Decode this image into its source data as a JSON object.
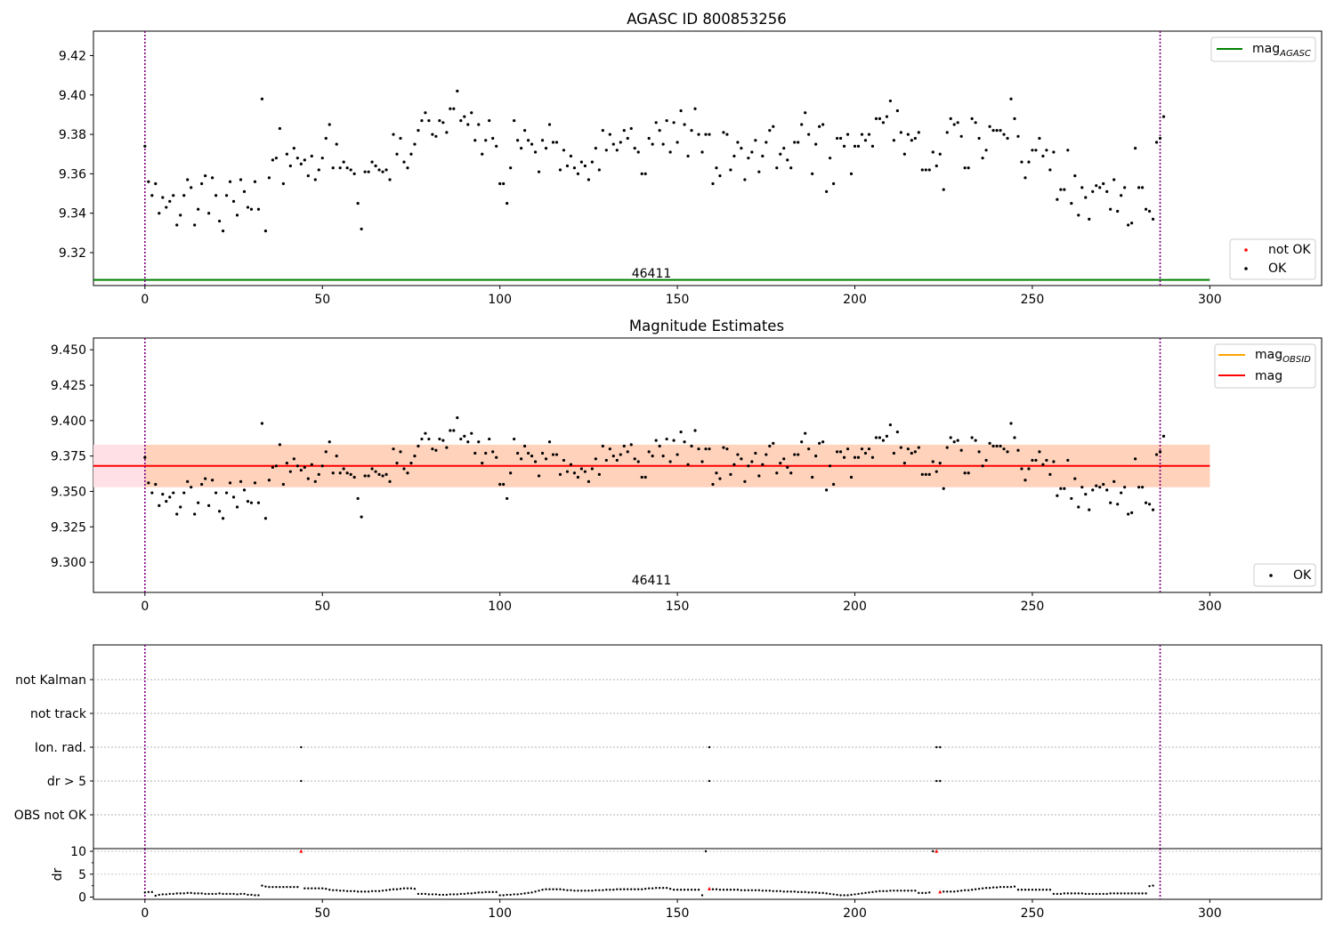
{
  "chart_data": [
    {
      "type": "scatter",
      "title": "AGASC ID 800853256",
      "x_ticks": [
        0,
        50,
        100,
        150,
        200,
        250,
        300
      ],
      "y_ticks": [
        9.32,
        9.34,
        9.36,
        9.38,
        9.4,
        9.42
      ],
      "xlim": [
        -14.5,
        331.5
      ],
      "ylim": [
        9.3033,
        9.4324
      ],
      "obsid_label": "46411",
      "obsid_boundaries": [
        0,
        286
      ],
      "legend_top": [
        {
          "label": "mag",
          "sub": "AGASC",
          "color": "#008000"
        }
      ],
      "legend_bottom": [
        {
          "label": "not OK",
          "color": "#ff0000"
        },
        {
          "label": "OK",
          "color": "#000000"
        }
      ],
      "hlines": [
        {
          "name": "mag_AGASC",
          "y": 9.3062,
          "xmin": -14.5,
          "xmax": 300,
          "color": "#008000"
        }
      ]
    },
    {
      "type": "scatter",
      "title": "Magnitude Estimates",
      "x_ticks": [
        0,
        50,
        100,
        150,
        200,
        250,
        300
      ],
      "y_ticks": [
        9.3,
        9.325,
        9.35,
        9.375,
        9.4,
        9.425,
        9.45
      ],
      "xlim": [
        -14.5,
        331.5
      ],
      "ylim": [
        9.2787,
        9.4583
      ],
      "obsid_label": "46411",
      "obsid_boundaries": [
        0,
        286
      ],
      "legend_top": [
        {
          "label": "mag",
          "sub": "OBSID",
          "color": "#ffa500"
        },
        {
          "label": "mag",
          "sub": "",
          "color": "#ff0000"
        }
      ],
      "legend_bottom": [
        {
          "label": "OK",
          "color": "#000000"
        }
      ],
      "mean_mag": 9.368,
      "band_pink": [
        9.353,
        9.383
      ],
      "band_orange": [
        9.353,
        9.383
      ],
      "band_xrange": [
        -14.5,
        300
      ],
      "band_orange_xrange": [
        0,
        300
      ]
    },
    {
      "type": "scatter",
      "title": "",
      "flag_labels": [
        "not Kalman",
        "not track",
        "Ion. rad.",
        "dr > 5",
        "OBS not OK"
      ],
      "flags": {
        "Ion. rad.": [
          44,
          159,
          223,
          224
        ],
        "dr > 5": [
          44,
          159,
          223,
          224
        ]
      },
      "x_ticks": [
        0,
        50,
        100,
        150,
        200,
        250,
        300
      ],
      "xlim": [
        -14.5,
        331.5
      ],
      "obsid_boundaries": [
        0,
        286
      ]
    },
    {
      "type": "scatter",
      "title": "",
      "ylabel": "dr",
      "y_ticks": [
        0,
        5,
        10
      ],
      "ylim": [
        -0.5,
        10.5
      ],
      "x_ticks": [
        0,
        50,
        100,
        150,
        200,
        250,
        300
      ],
      "xlim": [
        -14.5,
        331.5
      ],
      "dr_outliers": [
        44,
        159,
        223,
        224
      ],
      "obsid_boundaries": [
        0,
        286
      ]
    }
  ],
  "series_mag": [
    9.374,
    9.356,
    9.349,
    9.355,
    9.34,
    9.348,
    9.343,
    9.346,
    9.349,
    9.334,
    9.339,
    9.349,
    9.357,
    9.353,
    9.334,
    9.342,
    9.355,
    9.359,
    9.34,
    9.358,
    9.349,
    9.336,
    9.331,
    9.349,
    9.356,
    9.346,
    9.339,
    9.357,
    9.351,
    9.343,
    9.342,
    9.356,
    9.342,
    9.398,
    9.331,
    9.358,
    9.367,
    9.368,
    9.383,
    9.355,
    9.37,
    9.364,
    9.373,
    9.368,
    9.365,
    9.367,
    9.359,
    9.369,
    9.357,
    9.362,
    9.368,
    9.378,
    9.385,
    9.363,
    9.375,
    9.363,
    9.366,
    9.363,
    9.362,
    9.36,
    9.345,
    9.332,
    9.361,
    9.361,
    9.366,
    9.364,
    9.362,
    9.361,
    9.362,
    9.357,
    9.38,
    9.37,
    9.378,
    9.366,
    9.363,
    9.37,
    9.375,
    9.382,
    9.387,
    9.391,
    9.387,
    9.38,
    9.379,
    9.387,
    9.386,
    9.381,
    9.393,
    9.393,
    9.402,
    9.387,
    9.389,
    9.385,
    9.391,
    9.377,
    9.385,
    9.37,
    9.377,
    9.387,
    9.378,
    9.374,
    9.355,
    9.355,
    9.345,
    9.363,
    9.387,
    9.377,
    9.373,
    9.382,
    9.377,
    9.375,
    9.371,
    9.361,
    9.377,
    9.373,
    9.385,
    9.376,
    9.376,
    9.362,
    9.372,
    9.364,
    9.369,
    9.363,
    9.36,
    9.366,
    9.364,
    9.357,
    9.366,
    9.373,
    9.362,
    9.382,
    9.372,
    9.38,
    9.375,
    9.372,
    9.376,
    9.382,
    9.378,
    9.383,
    9.373,
    9.371,
    9.36,
    9.36,
    9.378,
    9.375,
    9.386,
    9.382,
    9.375,
    9.387,
    9.371,
    9.386,
    9.376,
    9.392,
    9.385,
    9.369,
    9.382,
    9.393,
    9.38,
    9.371,
    9.38,
    9.38,
    9.355,
    9.363,
    9.359,
    9.381,
    9.38,
    9.362,
    9.369,
    9.376,
    9.373,
    9.357,
    9.368,
    9.371,
    9.377,
    9.361,
    9.369,
    9.376,
    9.382,
    9.384,
    9.363,
    9.37,
    9.373,
    9.367,
    9.363,
    9.376,
    9.376,
    9.385,
    9.391,
    9.38,
    9.36,
    9.375,
    9.384,
    9.385,
    9.351,
    9.368,
    9.355,
    9.378,
    9.378,
    9.374,
    9.38,
    9.36,
    9.374,
    9.374,
    9.38,
    9.377,
    9.38,
    9.374,
    9.388,
    9.388,
    9.386,
    9.389,
    9.397,
    9.377,
    9.392,
    9.381,
    9.37,
    9.38,
    9.377,
    9.378,
    9.381,
    9.362,
    9.362,
    9.362,
    9.371,
    9.364,
    9.37,
    9.352,
    9.381,
    9.388,
    9.385,
    9.386,
    9.379,
    9.363,
    9.363,
    9.388,
    9.386,
    9.378,
    9.368,
    9.372,
    9.384,
    9.382,
    9.382,
    9.382,
    9.38,
    9.378,
    9.398,
    9.388,
    9.379,
    9.366,
    9.358,
    9.366,
    9.372,
    9.372,
    9.378,
    9.369,
    9.372,
    9.362,
    9.371,
    9.347,
    9.352,
    9.352,
    9.372,
    9.345,
    9.359,
    9.339,
    9.353,
    9.348,
    9.337,
    9.351,
    9.354,
    9.353,
    9.355,
    9.351,
    9.342,
    9.357,
    9.341,
    9.349,
    9.353,
    9.334,
    9.335,
    9.373,
    9.353,
    9.353,
    9.342,
    9.341,
    9.337,
    9.376,
    9.378,
    9.389
  ],
  "series_dr": [
    1.0,
    1.1,
    1.1,
    0.3,
    0.5,
    0.6,
    0.6,
    0.7,
    0.7,
    0.8,
    0.8,
    0.8,
    0.9,
    0.9,
    0.8,
    0.8,
    0.8,
    0.7,
    0.7,
    0.7,
    0.7,
    0.8,
    0.7,
    0.7,
    0.7,
    0.7,
    0.6,
    0.7,
    0.7,
    0.5,
    0.5,
    0.4,
    0.4,
    2.5,
    2.3,
    2.2,
    2.2,
    2.2,
    2.2,
    2.2,
    2.2,
    2.2,
    2.2,
    2.2,
    10.0,
    1.9,
    1.9,
    1.9,
    1.9,
    1.9,
    1.9,
    1.8,
    1.6,
    1.5,
    1.5,
    1.4,
    1.4,
    1.3,
    1.3,
    1.3,
    1.2,
    1.2,
    1.2,
    1.2,
    1.3,
    1.3,
    1.3,
    1.4,
    1.5,
    1.6,
    1.7,
    1.7,
    1.8,
    1.9,
    1.9,
    1.9,
    1.8,
    0.7,
    0.7,
    0.7,
    0.6,
    0.6,
    0.6,
    0.5,
    0.5,
    0.5,
    0.6,
    0.6,
    0.6,
    0.7,
    0.7,
    0.8,
    0.8,
    0.9,
    1.0,
    1.0,
    1.1,
    1.1,
    1.1,
    1.1,
    0.4,
    0.4,
    0.5,
    0.5,
    0.6,
    0.6,
    0.7,
    0.8,
    0.9,
    1.0,
    1.2,
    1.4,
    1.6,
    1.7,
    1.7,
    1.7,
    1.7,
    1.7,
    1.6,
    1.5,
    1.5,
    1.4,
    1.4,
    1.4,
    1.4,
    1.4,
    1.4,
    1.5,
    1.5,
    1.5,
    1.6,
    1.6,
    1.6,
    1.7,
    1.7,
    1.7,
    1.7,
    1.7,
    1.7,
    1.7,
    1.7,
    1.8,
    1.9,
    1.9,
    2.0,
    2.0,
    2.0,
    2.0,
    1.8,
    1.6,
    1.6,
    1.6,
    1.6,
    1.6,
    1.6,
    1.6,
    1.6,
    0.4,
    10.0,
    1.8,
    1.7,
    1.7,
    1.6,
    1.6,
    1.6,
    1.6,
    1.6,
    1.6,
    1.5,
    1.5,
    1.5,
    1.5,
    1.5,
    1.5,
    1.4,
    1.4,
    1.4,
    1.3,
    1.3,
    1.3,
    1.2,
    1.2,
    1.2,
    1.2,
    1.1,
    1.1,
    1.1,
    1.0,
    1.0,
    1.0,
    0.9,
    0.9,
    0.8,
    0.7,
    0.6,
    0.5,
    0.4,
    0.4,
    0.4,
    0.5,
    0.6,
    0.7,
    0.8,
    0.9,
    1.0,
    1.1,
    1.2,
    1.3,
    1.3,
    1.3,
    1.4,
    1.4,
    1.4,
    1.4,
    1.4,
    1.4,
    1.4,
    1.4,
    0.9,
    0.9,
    0.9,
    1.0,
    10.0,
    10.0,
    1.1,
    1.2,
    1.2,
    1.2,
    1.2,
    1.3,
    1.4,
    1.5,
    1.5,
    1.6,
    1.7,
    1.8,
    1.9,
    2.0,
    2.0,
    2.1,
    2.1,
    2.2,
    2.2,
    2.2,
    2.2,
    2.3,
    1.6,
    1.6,
    1.6,
    1.6,
    1.6,
    1.6,
    1.6,
    1.6,
    1.6,
    1.6,
    0.7,
    0.7,
    0.7,
    0.8,
    0.8,
    0.8,
    0.8,
    0.8,
    0.8,
    0.7,
    0.7,
    0.7,
    0.7,
    0.7,
    0.7,
    0.7,
    0.8,
    0.8,
    0.8,
    0.8,
    0.8,
    0.8,
    0.8,
    0.8,
    0.8,
    0.8,
    0.8,
    2.4,
    2.5
  ],
  "colors": {
    "obsid_line": "#800080",
    "agasc_line": "#008000",
    "obsid_mag": "#ffa500",
    "mean_mag": "#ff0000",
    "band_pink": "#ffe0e6",
    "band_orange": "#ffd2bb",
    "outlier": "#ff0000",
    "ok_point": "#000000"
  }
}
